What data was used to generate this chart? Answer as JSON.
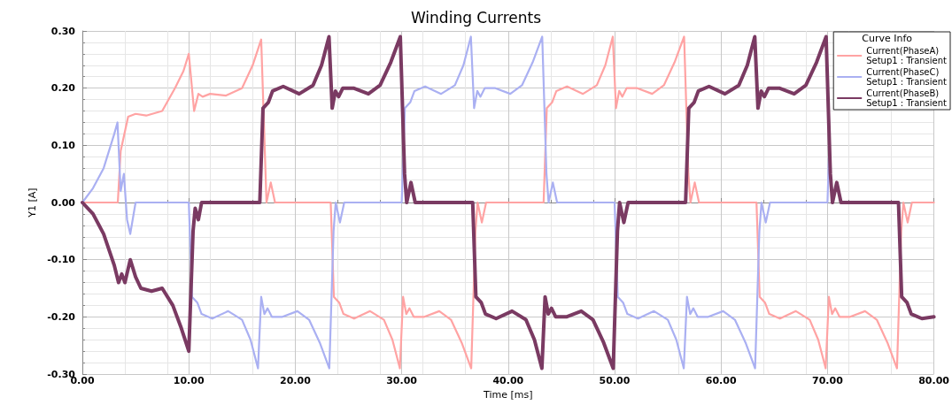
{
  "chart_data": {
    "type": "line",
    "title": "Winding Currents",
    "xlabel": "Time [ms]",
    "ylabel": "Y1 [A]",
    "legend_title": "Curve Info",
    "legend": "top right",
    "grid": true,
    "marker": "none",
    "line_style": "solid",
    "xlim": [
      0,
      80
    ],
    "xticks": [
      {
        "value": 0,
        "label": "0.00"
      },
      {
        "value": 10,
        "label": "10.00"
      },
      {
        "value": 20,
        "label": "20.00"
      },
      {
        "value": 30,
        "label": "30.00"
      },
      {
        "value": 40,
        "label": "40.00"
      },
      {
        "value": 50,
        "label": "50.00"
      },
      {
        "value": 60,
        "label": "60.00"
      },
      {
        "value": 70,
        "label": "70.00"
      },
      {
        "value": 80,
        "label": "80.00"
      }
    ],
    "ylim": [
      -0.3,
      0.3
    ],
    "yticks": [
      {
        "value": -0.3,
        "label": "-0.30"
      },
      {
        "value": -0.2,
        "label": "-0.20"
      },
      {
        "value": -0.1,
        "label": "-0.10"
      },
      {
        "value": 0,
        "label": "0.00"
      },
      {
        "value": 0.1,
        "label": "0.10"
      },
      {
        "value": 0.2,
        "label": "0.20"
      },
      {
        "value": 0.3,
        "label": "0.30"
      }
    ],
    "series": [
      {
        "name": "Current(PhaseA)\nSetup1 : Transient",
        "color": "#ffa3a3",
        "x": [
          0,
          3.33,
          3.6,
          4.3,
          5,
          6,
          7.5,
          8.7,
          9.5,
          10,
          10.5,
          10.9,
          11.3,
          12,
          13.5,
          15,
          16,
          16.8,
          17.3,
          17.7,
          18.1,
          23.33,
          23.63,
          24.13,
          24.53,
          25.53,
          27.03,
          28.33,
          29.13,
          29.83,
          30.13,
          30.43,
          30.73,
          31.13,
          32.13,
          33.53,
          34.63,
          35.63,
          36.53,
          36.93,
          37.13,
          37.53,
          37.93,
          43.33,
          43.63,
          44.13,
          44.53,
          45.53,
          47.03,
          48.33,
          49.13,
          49.83,
          50.13,
          50.43,
          50.73,
          51.13,
          52.13,
          53.53,
          54.63,
          55.63,
          56.53,
          56.93,
          57.13,
          57.53,
          57.93,
          63.33,
          63.63,
          64.13,
          64.53,
          65.53,
          67.03,
          68.33,
          69.13,
          69.83,
          70.13,
          70.43,
          70.73,
          71.13,
          72.13,
          73.53,
          74.63,
          75.63,
          76.53,
          76.93,
          77.13,
          77.53,
          77.93,
          80
        ],
        "values": [
          0,
          0,
          0.09,
          0.15,
          0.155,
          0.152,
          0.16,
          0.2,
          0.23,
          0.26,
          0.16,
          0.19,
          0.185,
          0.19,
          0.187,
          0.2,
          0.24,
          0.285,
          0,
          0.035,
          0,
          0,
          -0.165,
          -0.175,
          -0.195,
          -0.203,
          -0.19,
          -0.205,
          -0.24,
          -0.29,
          -0.165,
          -0.195,
          -0.185,
          -0.2,
          -0.2,
          -0.19,
          -0.205,
          -0.245,
          -0.29,
          -0.05,
          0,
          -0.035,
          0,
          0,
          0.165,
          0.175,
          0.195,
          0.203,
          0.19,
          0.205,
          0.24,
          0.29,
          0.165,
          0.195,
          0.185,
          0.2,
          0.2,
          0.19,
          0.205,
          0.245,
          0.29,
          0.05,
          0,
          0.035,
          0,
          0,
          -0.165,
          -0.175,
          -0.195,
          -0.203,
          -0.19,
          -0.205,
          -0.24,
          -0.29,
          -0.165,
          -0.195,
          -0.185,
          -0.2,
          -0.2,
          -0.19,
          -0.205,
          -0.245,
          -0.29,
          -0.05,
          0,
          -0.035,
          0,
          0
        ]
      },
      {
        "name": "Current(PhaseC)\nSetup1 : Transient",
        "color": "#aab0f2",
        "x": [
          0,
          1,
          2,
          3,
          3.3,
          3.6,
          3.9,
          4.2,
          4.5,
          5,
          10,
          10.3,
          10.8,
          11.2,
          12.2,
          13.7,
          15,
          15.8,
          16.5,
          16.8,
          17.1,
          17.4,
          17.8,
          18.8,
          20.2,
          21.3,
          22.3,
          23.2,
          23.6,
          23.8,
          24.2,
          24.6,
          30,
          30.3,
          30.8,
          31.2,
          32.2,
          33.7,
          35,
          35.8,
          36.5,
          36.8,
          37.1,
          37.4,
          37.8,
          38.8,
          40.2,
          41.3,
          42.3,
          43.2,
          43.6,
          43.8,
          44.2,
          44.6,
          50,
          50.3,
          50.8,
          51.2,
          52.2,
          53.7,
          55,
          55.8,
          56.5,
          56.8,
          57.1,
          57.4,
          57.8,
          58.8,
          60.2,
          61.3,
          62.3,
          63.2,
          63.6,
          63.8,
          64.2,
          64.6,
          70,
          70.2
        ],
        "values": [
          0,
          0.025,
          0.06,
          0.12,
          0.14,
          0.02,
          0.05,
          -0.03,
          -0.055,
          0,
          0,
          -0.165,
          -0.175,
          -0.195,
          -0.203,
          -0.19,
          -0.205,
          -0.24,
          -0.29,
          -0.165,
          -0.195,
          -0.185,
          -0.2,
          -0.2,
          -0.19,
          -0.205,
          -0.245,
          -0.29,
          -0.05,
          0,
          -0.035,
          0,
          0,
          0.165,
          0.175,
          0.195,
          0.203,
          0.19,
          0.205,
          0.24,
          0.29,
          0.165,
          0.195,
          0.185,
          0.2,
          0.2,
          0.19,
          0.205,
          0.245,
          0.29,
          0.05,
          0,
          0.035,
          0,
          0,
          -0.165,
          -0.175,
          -0.195,
          -0.203,
          -0.19,
          -0.205,
          -0.24,
          -0.29,
          -0.165,
          -0.195,
          -0.185,
          -0.2,
          -0.2,
          -0.19,
          -0.205,
          -0.245,
          -0.29,
          -0.05,
          0,
          -0.035,
          0,
          0,
          0.12
        ]
      },
      {
        "name": "Current(PhaseB)\nSetup1 : Transient",
        "color": "#7a3a62",
        "x": [
          0,
          1,
          2,
          3,
          3.4,
          3.7,
          4,
          4.5,
          5,
          5.5,
          6.5,
          7.5,
          8.5,
          9.3,
          10,
          10.4,
          10.6,
          10.9,
          11.2,
          16.67,
          16.97,
          17.47,
          17.87,
          18.87,
          20.37,
          21.67,
          22.47,
          23.17,
          23.47,
          23.77,
          24.07,
          24.47,
          25.47,
          26.87,
          27.97,
          28.97,
          29.87,
          30.27,
          30.47,
          30.87,
          31.27,
          36.67,
          36.97,
          37.47,
          37.87,
          38.87,
          40.37,
          41.67,
          42.47,
          43.17,
          43.47,
          43.77,
          44.07,
          44.47,
          45.47,
          46.87,
          47.97,
          48.97,
          49.87,
          50.27,
          50.47,
          50.87,
          51.27,
          56.67,
          56.97,
          57.47,
          57.87,
          58.87,
          60.37,
          61.67,
          62.47,
          63.17,
          63.47,
          63.77,
          64.07,
          64.47,
          65.47,
          66.87,
          67.97,
          68.97,
          69.87,
          70.27,
          70.47,
          70.87,
          71.27,
          76.67,
          76.97,
          77.47,
          77.87,
          78.87,
          80
        ],
        "values": [
          0,
          -0.02,
          -0.055,
          -0.11,
          -0.14,
          -0.125,
          -0.14,
          -0.1,
          -0.13,
          -0.15,
          -0.155,
          -0.15,
          -0.18,
          -0.22,
          -0.26,
          -0.05,
          -0.01,
          -0.03,
          0,
          0,
          0.165,
          0.175,
          0.195,
          0.203,
          0.19,
          0.205,
          0.24,
          0.29,
          0.165,
          0.195,
          0.185,
          0.2,
          0.2,
          0.19,
          0.205,
          0.245,
          0.29,
          0.05,
          0,
          0.035,
          0,
          0,
          -0.165,
          -0.175,
          -0.195,
          -0.203,
          -0.19,
          -0.205,
          -0.24,
          -0.29,
          -0.165,
          -0.195,
          -0.185,
          -0.2,
          -0.2,
          -0.19,
          -0.205,
          -0.245,
          -0.29,
          -0.05,
          0,
          -0.035,
          0,
          0,
          0.165,
          0.175,
          0.195,
          0.203,
          0.19,
          0.205,
          0.24,
          0.29,
          0.165,
          0.195,
          0.185,
          0.2,
          0.2,
          0.19,
          0.205,
          0.245,
          0.29,
          0.05,
          0,
          0.035,
          0,
          0,
          -0.165,
          -0.175,
          -0.195,
          -0.203,
          -0.2
        ]
      }
    ]
  }
}
